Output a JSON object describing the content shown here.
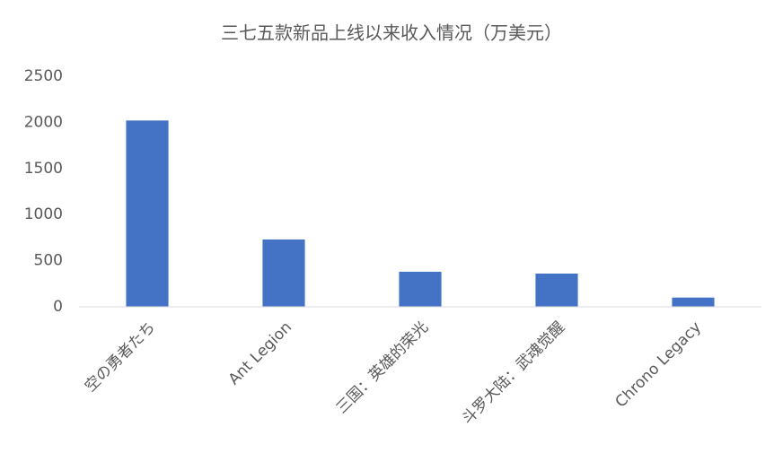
{
  "chart_data": {
    "type": "bar",
    "title": "三七五款新品上线以来收入情况（万美元）",
    "categories": [
      "空の勇者たち",
      "Ant Legion",
      "三国：英雄的荣光",
      "斗罗大陆：武魂觉醒",
      "Chrono Legacy"
    ],
    "values": [
      2020,
      730,
      380,
      360,
      100
    ],
    "color": "#4472c4",
    "ylim": [
      0,
      2500
    ],
    "yticks": [
      0,
      500,
      1000,
      1500,
      2000,
      2500
    ],
    "grid": false
  }
}
